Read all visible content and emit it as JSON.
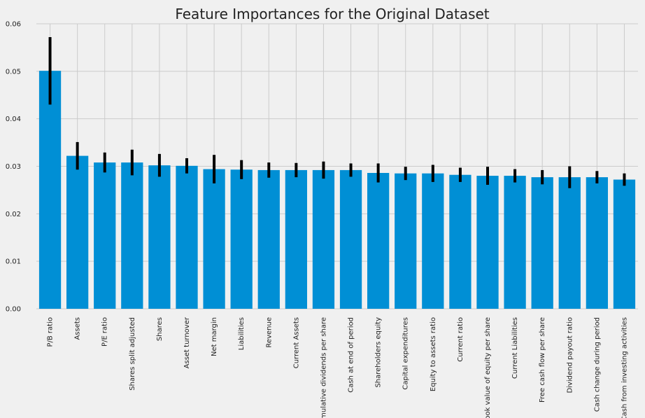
{
  "chart_data": {
    "type": "bar",
    "title": "Feature Importances for the Original Dataset",
    "xlabel": "",
    "ylabel": "",
    "ylim": [
      0,
      0.06
    ],
    "yticks": [
      "0.00",
      "0.01",
      "0.02",
      "0.03",
      "0.04",
      "0.05",
      "0.06"
    ],
    "grid": true,
    "bar_color": "#008fd5",
    "error_color": "#000000",
    "background_color": "#f0f0f0",
    "grid_color": "#cbcbcb",
    "categories": [
      "P/B ratio",
      "Assets",
      "P/E ratio",
      "Shares split adjusted",
      "Shares",
      "Asset turnover",
      "Net margin",
      "Liabilities",
      "Revenue",
      "Current Assets",
      "Cumulative dividends per share",
      "Cash at end of period",
      "Shareholders equity",
      "Capital expenditures",
      "Equity to assets ratio",
      "Current ratio",
      "Book value of equity per share",
      "Current Liabilities",
      "Free cash flow per share",
      "Dividend payout ratio",
      "Cash change during period",
      "Cash from investing activities"
    ],
    "values": [
      0.0501,
      0.0322,
      0.0308,
      0.0308,
      0.0302,
      0.0301,
      0.0294,
      0.0293,
      0.0292,
      0.0292,
      0.0292,
      0.0292,
      0.0286,
      0.0285,
      0.0285,
      0.0282,
      0.028,
      0.028,
      0.0277,
      0.0277,
      0.0277,
      0.0272
    ],
    "errors": [
      0.0071,
      0.0029,
      0.0021,
      0.0027,
      0.0024,
      0.0016,
      0.003,
      0.002,
      0.0016,
      0.0015,
      0.0018,
      0.0014,
      0.002,
      0.0014,
      0.0018,
      0.0015,
      0.0019,
      0.0014,
      0.0015,
      0.0023,
      0.0013,
      0.0013
    ]
  }
}
